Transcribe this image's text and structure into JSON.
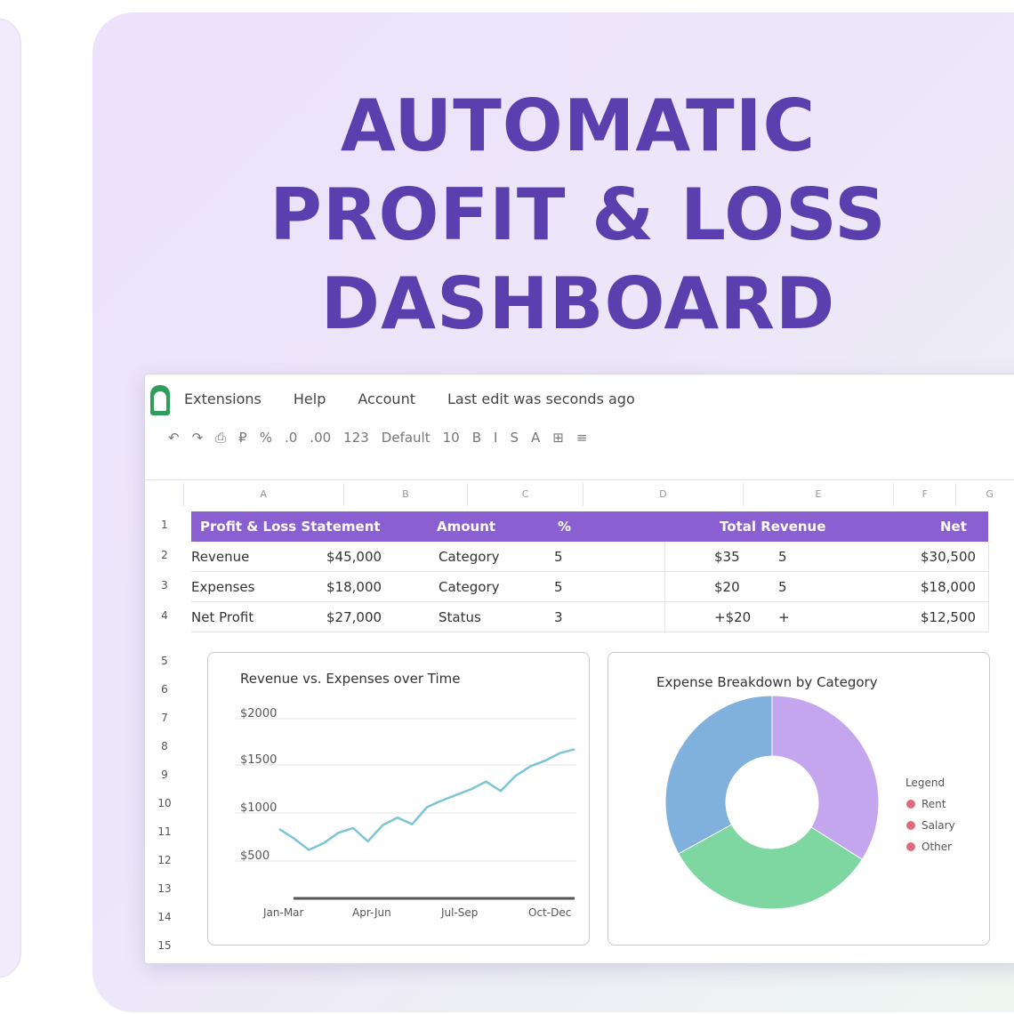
{
  "headline": {
    "line1": "AUTOMATIC",
    "line2": "PROFIT & LOSS",
    "line3": "DASHBOARD"
  },
  "colors": {
    "headline": "#5b3fae",
    "table_header": "#8a5fd1",
    "line_series": "#7cc4d6",
    "pie_purple": "#c4a6ef",
    "pie_green": "#7ed6a1",
    "pie_blue": "#7fb1dc",
    "app_logo": "#2f9e5c"
  },
  "app": {
    "logo_icon": "sheets-logo-icon",
    "menu": [
      "Extensions",
      "Help",
      "Account",
      "Last edit was seconds ago"
    ]
  },
  "toolbar": {
    "items": [
      "↶",
      "↷",
      "⎙",
      "₽",
      "%",
      ".0",
      ".00",
      "123",
      "Default",
      "10",
      "B",
      "I",
      "S",
      "A",
      "⊞",
      "≡"
    ]
  },
  "sheet": {
    "column_letters": [
      "",
      "A",
      "B",
      "C",
      "D",
      "E",
      "F",
      "G"
    ],
    "row_numbers_top": [
      "1",
      "2",
      "3",
      "4"
    ],
    "row_numbers_bottom": [
      "5",
      "6",
      "7",
      "8",
      "9",
      "10",
      "11",
      "12",
      "13",
      "14",
      "15"
    ],
    "table": {
      "headers": [
        "Profit & Loss Statement",
        "Amount",
        "%",
        "Total Revenue",
        "Net"
      ],
      "rows": [
        [
          "Revenue",
          "$45,000",
          "Category",
          "5",
          "$35",
          "5",
          "$30,500"
        ],
        [
          "Expenses",
          "$18,000",
          "Category",
          "5",
          "$20",
          "5",
          "$18,000"
        ],
        [
          "Net Profit",
          "$27,000",
          "Status",
          "3",
          "+$20",
          "+",
          "$12,500"
        ]
      ]
    }
  },
  "line_chart": {
    "title": "Revenue vs. Expenses over Time",
    "y_tick_labels": [
      "$2000",
      "$1500",
      "$1000",
      "$500"
    ],
    "x_tick_labels": [
      "Jan-Mar",
      "Apr-Jun",
      "Jul-Sep",
      "Oct-Dec"
    ]
  },
  "pie_chart": {
    "title": "Expense Breakdown by Category",
    "legend_title": "Legend",
    "legend": [
      "Rent",
      "Salary",
      "Other"
    ]
  },
  "chart_data": [
    {
      "type": "line",
      "title": "Revenue vs. Expenses over Time",
      "x": [
        0,
        1,
        2,
        3,
        4,
        5,
        6,
        7,
        8,
        9,
        10,
        11,
        12,
        13,
        14,
        15,
        16,
        17,
        18,
        19,
        20
      ],
      "series": [
        {
          "values": [
            1000,
            900,
            780,
            850,
            960,
            1010,
            870,
            1040,
            1120,
            1050,
            1230,
            1300,
            1360,
            1420,
            1500,
            1400,
            1560,
            1660,
            1720,
            1800,
            1840
          ]
        }
      ],
      "ylim": [
        400,
        2200
      ],
      "grid": true
    },
    {
      "type": "pie",
      "title": "Expense Breakdown by Category",
      "donut": true,
      "values": [
        34,
        33,
        33
      ],
      "colors": [
        "#c4a6ef",
        "#7ed6a1",
        "#7fb1dc"
      ]
    }
  ]
}
